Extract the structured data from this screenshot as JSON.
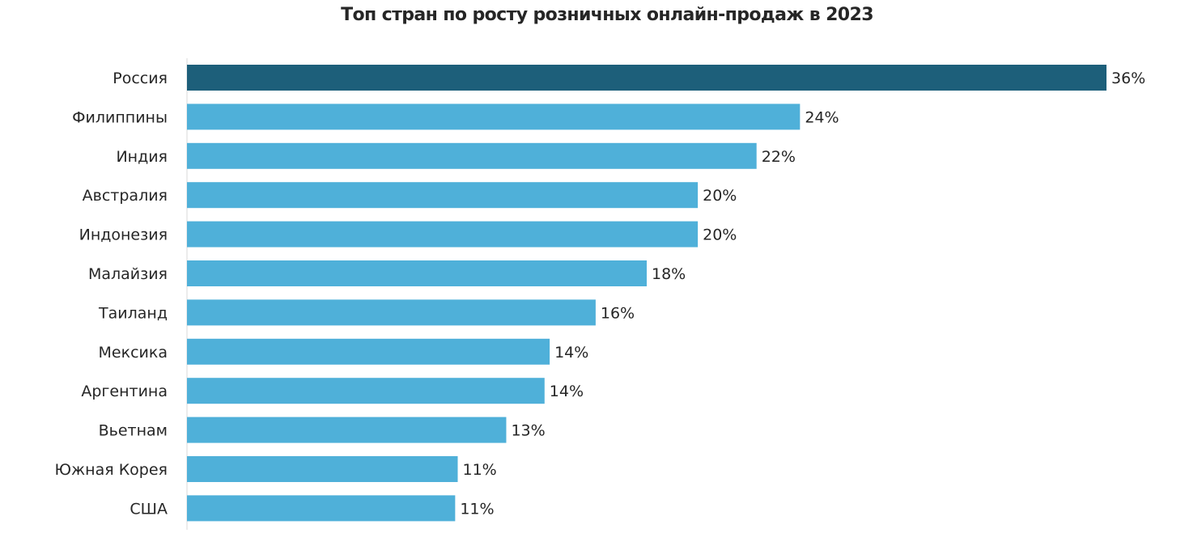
{
  "chart_data": {
    "type": "bar",
    "orientation": "horizontal",
    "title": "Топ стран по росту розничных онлайн-продаж в 2023",
    "xlabel": "",
    "ylabel": "",
    "xlim": [
      0,
      36
    ],
    "grid": false,
    "legend": "none",
    "categories": [
      "Россия",
      "Филиппины",
      "Индия",
      "Австралия",
      "Индонезия",
      "Малайзия",
      "Таиланд",
      "Мексика",
      "Аргентина",
      "Вьетнам",
      "Южная Корея",
      "США"
    ],
    "values": [
      36.0,
      24.0,
      22.3,
      20.0,
      20.0,
      18.0,
      16.0,
      14.2,
      14.0,
      12.5,
      10.6,
      10.5
    ],
    "labels": [
      "36%",
      "24%",
      "22%",
      "20%",
      "20%",
      "18%",
      "16%",
      "14%",
      "14%",
      "13%",
      "11%",
      "11%"
    ],
    "highlight_index": 0,
    "colors": {
      "highlight": "#1d5f7a",
      "default": "#4fb0d9",
      "axis": "#d9d9d9",
      "text": "#262626"
    }
  }
}
